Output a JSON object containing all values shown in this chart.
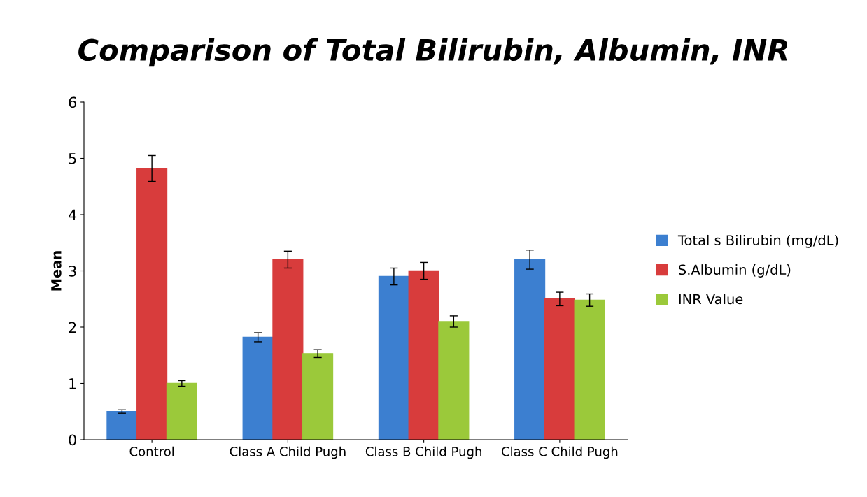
{
  "chart_data": {
    "type": "bar",
    "title": "Comparison of Total Bilirubin, Albumin, INR",
    "ylabel": "Mean",
    "categories": [
      "Control",
      "Class A Child Pugh",
      "Class B Child Pugh",
      "Class C Child Pugh"
    ],
    "series": [
      {
        "name": "Total s Bilirubin (mg/dL)",
        "color": "#3c7fd0",
        "values": [
          0.5,
          1.82,
          2.9,
          3.2
        ],
        "errors": [
          0.03,
          0.08,
          0.15,
          0.17
        ]
      },
      {
        "name": "S.Albumin (g/dL)",
        "color": "#d83c3c",
        "values": [
          4.82,
          3.2,
          3.0,
          2.5
        ],
        "errors": [
          0.23,
          0.15,
          0.15,
          0.12
        ]
      },
      {
        "name": "INR Value",
        "color": "#9bc93a",
        "values": [
          1.0,
          1.53,
          2.1,
          2.48
        ],
        "errors": [
          0.05,
          0.07,
          0.1,
          0.11
        ]
      }
    ],
    "ylim": [
      0,
      6
    ],
    "yticks": [
      0,
      1,
      2,
      3,
      4,
      5,
      6
    ],
    "grid": false,
    "legend": "right"
  }
}
